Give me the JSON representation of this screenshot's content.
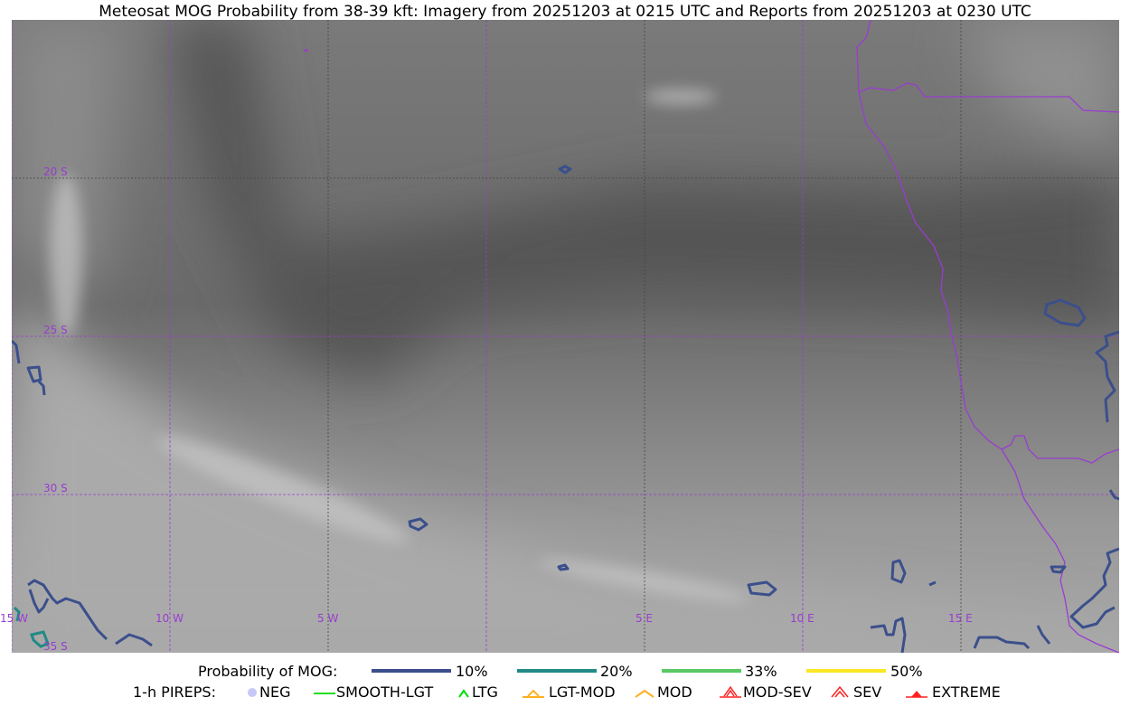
{
  "title": "Meteosat MOG Probability from 38-39 kft: Imagery from 20251203 at 0215 UTC and Reports from 20251203 at 0230 UTC",
  "map": {
    "lon_labels": [
      "15 W",
      "10 W",
      "5 W",
      "5 E",
      "10 E",
      "15 E"
    ],
    "lat_labels": [
      "20 S",
      "25 S",
      "30 S",
      "35 S"
    ],
    "gridline_color": "#9a3cd0",
    "coastline_color": "#9a3cd0"
  },
  "legend": {
    "prob_title": "Probability of MOG:",
    "prob_levels": [
      {
        "label": "10%",
        "color": "#3b4f8c"
      },
      {
        "label": "20%",
        "color": "#218a86"
      },
      {
        "label": "33%",
        "color": "#5ac864"
      },
      {
        "label": "50%",
        "color": "#fde725"
      }
    ],
    "pirep_title": "1-h PIREPS:",
    "pireps": [
      {
        "label": "NEG",
        "icon": "neg-circle-icon",
        "color": "#c8c8f8"
      },
      {
        "label": "SMOOTH-LGT",
        "icon": "line-icon",
        "color": "#22dd22"
      },
      {
        "label": "LTG",
        "icon": "caret-icon",
        "color": "#00dd00"
      },
      {
        "label": "LGT-MOD",
        "icon": "caret-bar-icon",
        "color": "#ffb020"
      },
      {
        "label": "MOD",
        "icon": "caret-icon",
        "color": "#ffb020"
      },
      {
        "label": "MOD-SEV",
        "icon": "double-caret-bar-icon",
        "color": "#ff2020"
      },
      {
        "label": "SEV",
        "icon": "double-caret-icon",
        "color": "#ff2020"
      },
      {
        "label": "EXTREME",
        "icon": "filled-triangle-icon",
        "color": "#ff2020"
      }
    ]
  }
}
